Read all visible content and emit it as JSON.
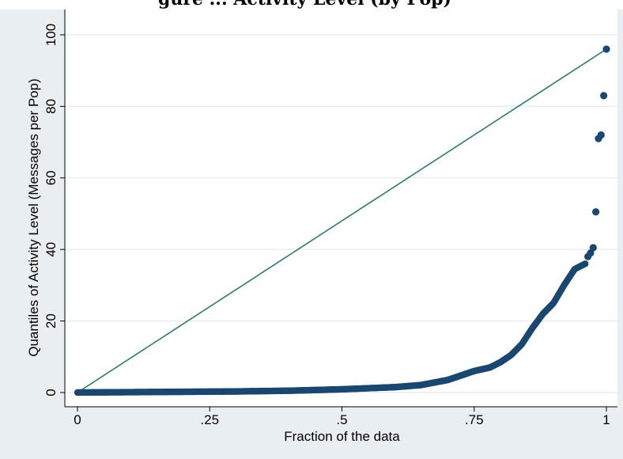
{
  "page_header": {
    "clipped_caption": "gure ... Activity Level (by Pop)"
  },
  "chart_data": {
    "type": "scatter",
    "xlabel": "Fraction of the data",
    "ylabel": "Quantiles of Activity Level (Messages per Pop)",
    "xlim": [
      0,
      1
    ],
    "ylim": [
      0,
      100
    ],
    "x_ticks": [
      0,
      0.25,
      0.5,
      0.75,
      1
    ],
    "x_tick_labels": [
      "0",
      ".25",
      ".5",
      ".75",
      "1"
    ],
    "y_ticks": [
      0,
      20,
      40,
      60,
      80,
      100
    ],
    "y_tick_labels": [
      "0",
      "20",
      "40",
      "60",
      "80",
      "100"
    ],
    "grid": true,
    "legend": "none",
    "colors": {
      "points": "#1a476f",
      "reference_line": "#2e7a5f",
      "plot_background": "#ffffff",
      "figure_background": "#e9eef2",
      "grid": "#e9eef2"
    },
    "reference_line": {
      "x": [
        0,
        1
      ],
      "y": [
        0,
        96
      ]
    },
    "quantile_curve": {
      "x": [
        0,
        0.3,
        0.4,
        0.5,
        0.55,
        0.6,
        0.65,
        0.7,
        0.73,
        0.75,
        0.78,
        0.8,
        0.82,
        0.84,
        0.86,
        0.88,
        0.9,
        0.92,
        0.94,
        0.96
      ],
      "y": [
        0,
        0.3,
        0.5,
        0.9,
        1.2,
        1.5,
        2.1,
        3.5,
        5.0,
        6.0,
        7.0,
        8.5,
        10.5,
        13.5,
        18.0,
        22.0,
        25.0,
        30.0,
        34.5,
        36.0
      ]
    },
    "outliers": {
      "x": [
        0.965,
        0.97,
        0.975,
        0.98,
        0.985,
        0.99,
        0.995,
        1.0
      ],
      "y": [
        38.0,
        39.0,
        40.5,
        50.5,
        71.0,
        72.0,
        83.0,
        96.0
      ]
    }
  }
}
